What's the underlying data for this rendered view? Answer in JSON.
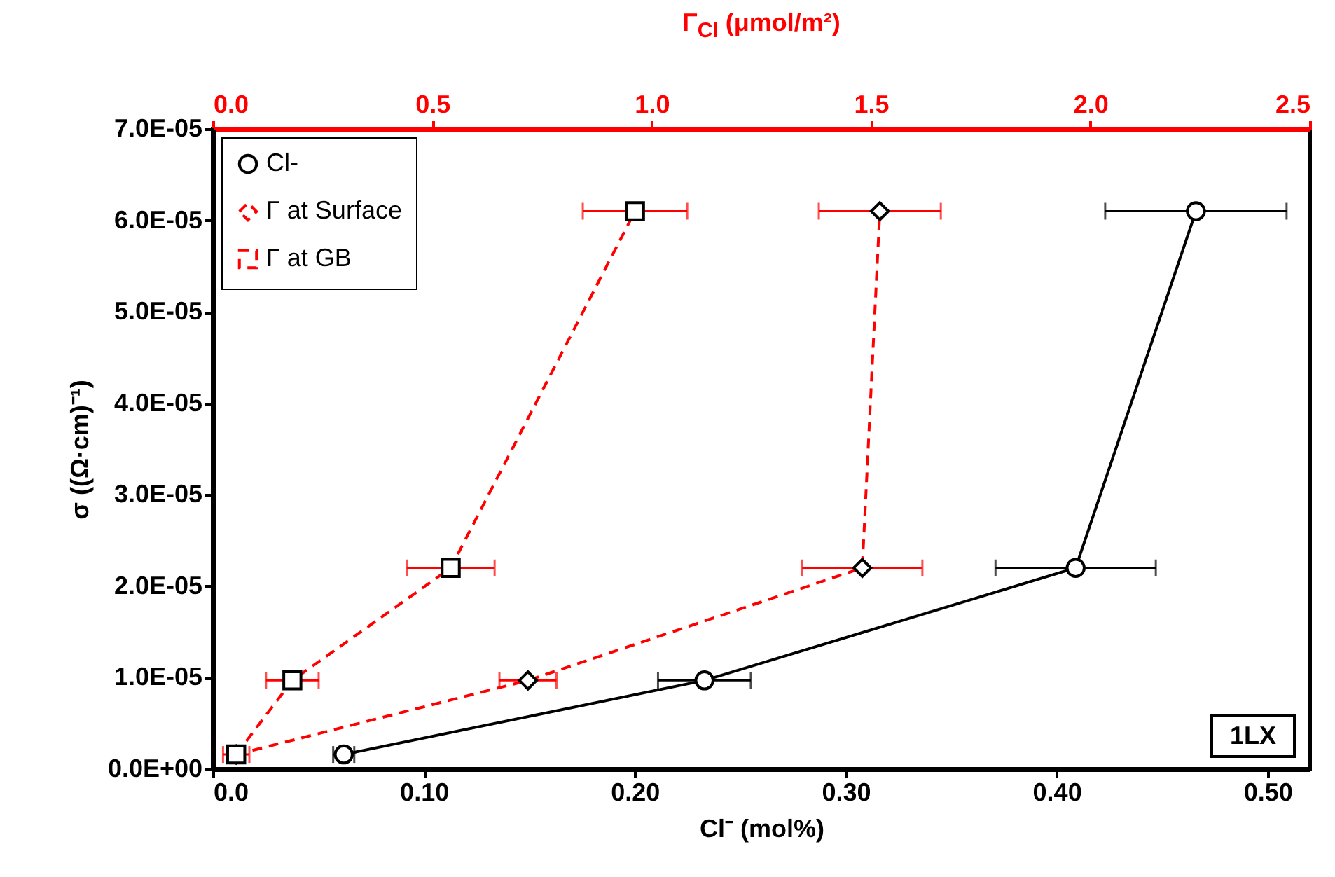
{
  "chart_data": {
    "type": "line",
    "xlabel": "Cl⁻ (mol%)",
    "ylabel": "σ ((Ω·cm)⁻¹)",
    "x2label": "Γ$_{Cl}$ (μmol/m²)",
    "xlim": [
      0,
      0.52
    ],
    "xticks": [
      {
        "value": 0,
        "label": "0.0"
      },
      {
        "value": 0.1,
        "label": "0.10"
      },
      {
        "value": 0.2,
        "label": "0.20"
      },
      {
        "value": 0.3,
        "label": "0.30"
      },
      {
        "value": 0.4,
        "label": "0.40"
      },
      {
        "value": 0.5,
        "label": "0.50"
      }
    ],
    "x2lim": [
      0,
      2.5
    ],
    "x2ticks": [
      {
        "value": 0,
        "label": "0.0"
      },
      0.5,
      {
        "value": 1,
        "label": "1.0"
      },
      1.5,
      {
        "value": 2,
        "label": "2.0"
      },
      2.5
    ],
    "ylim": [
      0,
      7e-05
    ],
    "yticks": [
      {
        "value": 0,
        "label": "0.0E+00"
      },
      {
        "value": 1e-05,
        "label": "1.0E-05"
      },
      {
        "value": 2e-05,
        "label": "2.0E-05"
      },
      {
        "value": 3e-05,
        "label": "3.0E-05"
      },
      {
        "value": 4e-05,
        "label": "4.0E-05"
      },
      {
        "value": 5e-05,
        "label": "5.0E-05"
      },
      {
        "value": 6e-05,
        "label": "6.0E-05"
      },
      {
        "value": 7e-05,
        "label": "7.0E-05"
      }
    ],
    "grid": false,
    "legend": "top left",
    "annotations": [
      "1LX"
    ],
    "series": [
      {
        "name": "Cl-",
        "color": "#000000",
        "marker": "circle",
        "line_style": "solid",
        "x": [
          0.062,
          0.233,
          0.409,
          0.466
        ],
        "values": [
          1.6e-06,
          9.7e-06,
          2.2e-05,
          6.1e-05
        ],
        "xerrors": [
          0.005,
          0.022,
          0.038,
          0.043
        ]
      },
      {
        "name": "Γ at Surface",
        "color": "#ff0000",
        "marker": "diamond",
        "line_style": "dashed",
        "axis": "x2",
        "x": [
          0.053,
          0.718,
          1.48,
          1.52
        ],
        "values": [
          1.6e-06,
          9.7e-06,
          2.2e-05,
          6.1e-05
        ],
        "xerrors": [
          null,
          0.065,
          0.137,
          0.139
        ]
      },
      {
        "name": "Γ at GB",
        "color": "#ff0000",
        "marker": "square",
        "line_style": "dashed",
        "axis": "x2",
        "x": [
          0.053,
          0.181,
          0.542,
          0.962
        ],
        "values": [
          1.6e-06,
          9.7e-06,
          2.2e-05,
          6.1e-05
        ],
        "xerrors": [
          0.03,
          0.06,
          0.1,
          0.119
        ]
      }
    ]
  }
}
